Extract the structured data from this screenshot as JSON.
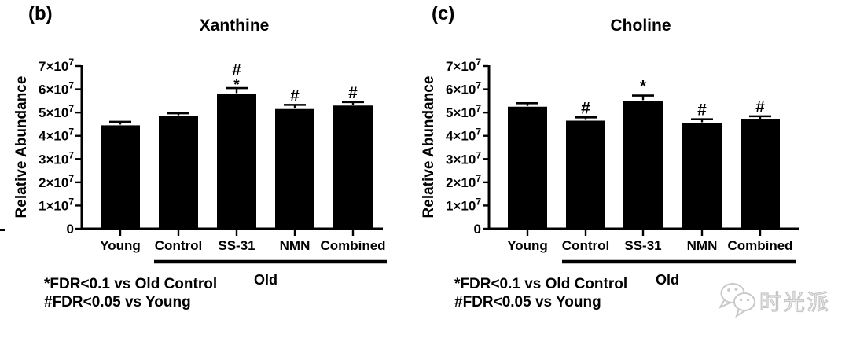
{
  "watermark": {
    "icon": "wechat-icon",
    "text": "时光派",
    "color": "#c9c9c9"
  },
  "chart_data": [
    {
      "type": "bar",
      "panel_label": "(b)",
      "title": "Xanthine",
      "ylabel": "Relative Abundance",
      "categories": [
        "Young",
        "Control",
        "SS-31",
        "NMN",
        "Combined"
      ],
      "values": [
        44500000,
        48500000,
        58000000,
        51500000,
        53000000
      ],
      "errors": [
        1500000,
        1200000,
        2500000,
        1800000,
        1500000
      ],
      "significance": [
        "",
        "",
        "#*",
        "#",
        "#"
      ],
      "ylim": [
        0,
        70000000
      ],
      "ytick_values": [
        0,
        10000000,
        20000000,
        30000000,
        40000000,
        50000000,
        60000000,
        70000000
      ],
      "ytick_labels": [
        [
          "0",
          ""
        ],
        [
          "1×10",
          "7"
        ],
        [
          "2×10",
          "7"
        ],
        [
          "3×10",
          "7"
        ],
        [
          "4×10",
          "7"
        ],
        [
          "5×10",
          "7"
        ],
        [
          "6×10",
          "7"
        ],
        [
          "7×10",
          "7"
        ]
      ],
      "grid": false,
      "bar_color": "#000000",
      "group_annotation": {
        "label": "Old",
        "from_category": "Control",
        "to_category": "Combined"
      },
      "footnotes": [
        "*FDR<0.1 vs Old Control",
        "#FDR<0.05 vs Young"
      ]
    },
    {
      "type": "bar",
      "panel_label": "(c)",
      "title": "Choline",
      "ylabel": "Relative Abundance",
      "categories": [
        "Young",
        "Control",
        "SS-31",
        "NMN",
        "Combined"
      ],
      "values": [
        52500000,
        46500000,
        55000000,
        45500000,
        47000000
      ],
      "errors": [
        1500000,
        1400000,
        2300000,
        1600000,
        1400000
      ],
      "significance": [
        "",
        "#",
        "*",
        "#",
        "#"
      ],
      "ylim": [
        0,
        70000000
      ],
      "ytick_values": [
        0,
        10000000,
        20000000,
        30000000,
        40000000,
        50000000,
        60000000,
        70000000
      ],
      "ytick_labels": [
        [
          "0",
          ""
        ],
        [
          "1×10",
          "7"
        ],
        [
          "2×10",
          "7"
        ],
        [
          "3×10",
          "7"
        ],
        [
          "4×10",
          "7"
        ],
        [
          "5×10",
          "7"
        ],
        [
          "6×10",
          "7"
        ],
        [
          "7×10",
          "7"
        ]
      ],
      "grid": false,
      "bar_color": "#000000",
      "group_annotation": {
        "label": "Old",
        "from_category": "Control",
        "to_category": "Combined"
      },
      "footnotes": [
        "*FDR<0.1 vs Old Control",
        "#FDR<0.05 vs Young"
      ]
    }
  ]
}
